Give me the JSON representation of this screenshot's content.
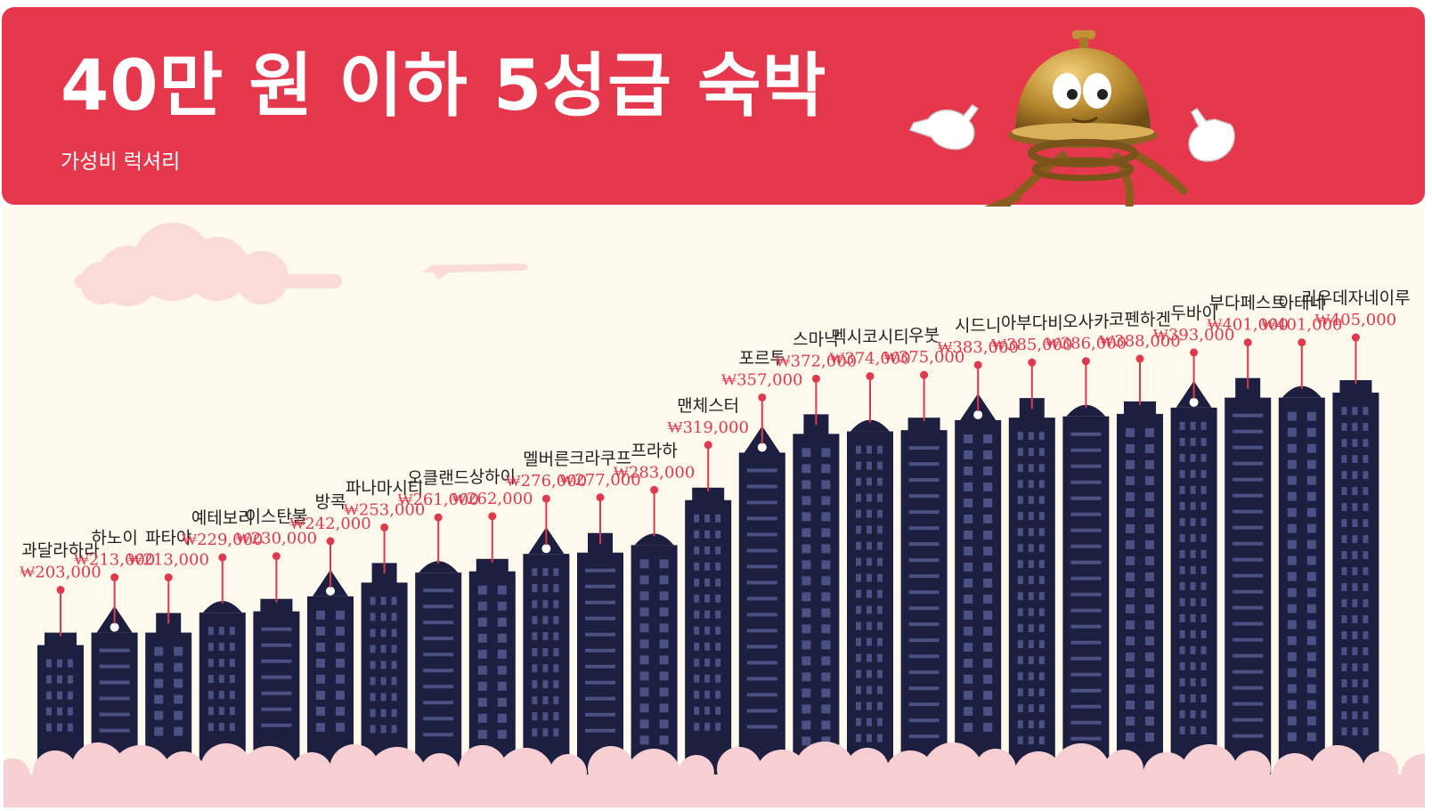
{
  "header": {
    "title": "40만 원 이하 5성급 숙박",
    "subtitle": "가성비 럭셔리"
  },
  "colors": {
    "header_bg": "#e5384d",
    "panel_bg": "#fdf9ec",
    "building": "#1c1f40",
    "building_window": "#4c5184",
    "price_text": "#e0394e",
    "marker": "#e0394e",
    "cloud": "#f7cfd3"
  },
  "icons": {
    "mascot": "hotel-bell-mascot-icon",
    "airplane": "airplane-icon",
    "cloud": "cloud-icon"
  },
  "chart_data": {
    "type": "bar",
    "title": "40만 원 이하 5성급 숙박",
    "subtitle": "가성비 럭셔리",
    "xlabel": "",
    "ylabel": "",
    "grid": false,
    "categories": [
      "과달라하라",
      "하노이",
      "파타야",
      "예테보리",
      "이스탄불",
      "방콕",
      "파나마시티",
      "오클랜드",
      "상하이",
      "멜버른",
      "크라쿠프",
      "프라하",
      "맨체스터",
      "포르투",
      "스마낙",
      "멕시코시티",
      "우붓",
      "시드니",
      "아부다비",
      "오사카",
      "코펜하겐",
      "두바이",
      "부다페스트",
      "아테네",
      "리우데자네이루"
    ],
    "values": [
      203000,
      213000,
      213000,
      229000,
      230000,
      242000,
      253000,
      261000,
      262000,
      276000,
      277000,
      283000,
      319000,
      357000,
      372000,
      374000,
      375000,
      383000,
      385000,
      386000,
      388000,
      393000,
      401000,
      401000,
      405000
    ],
    "value_labels": [
      "₩203,000",
      "₩213,000",
      "₩213,000",
      "₩229,000",
      "₩230,000",
      "₩242,000",
      "₩253,000",
      "₩261,000",
      "₩262,000",
      "₩276,000",
      "₩277,000",
      "₩283,000",
      "₩319,000",
      "₩357,000",
      "₩372,000",
      "₩374,000",
      "₩375,000",
      "₩383,000",
      "₩385,000",
      "₩386,000",
      "₩388,000",
      "₩393,000",
      "₩401,000",
      "₩401,000",
      "₩405,000"
    ],
    "currency": "₩"
  }
}
